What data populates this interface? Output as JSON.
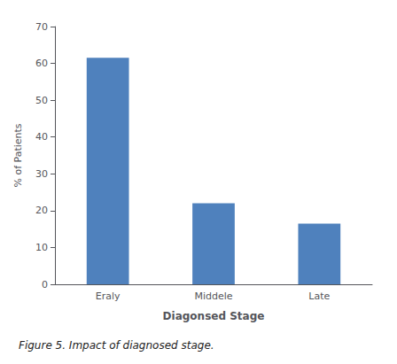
{
  "chart_data": {
    "type": "bar",
    "categories": [
      "Eraly",
      "Middele",
      "Late"
    ],
    "values": [
      61.5,
      22.0,
      16.5
    ],
    "color": "#4f81bd",
    "xlabel": "Diagonsed Stage",
    "ylabel": "% of Patients",
    "ylim": [
      0,
      70
    ],
    "yticks": [
      0,
      10,
      20,
      30,
      40,
      50,
      60,
      70
    ],
    "grid": false,
    "caption": "Figure 5. Impact of diagnosed stage."
  }
}
